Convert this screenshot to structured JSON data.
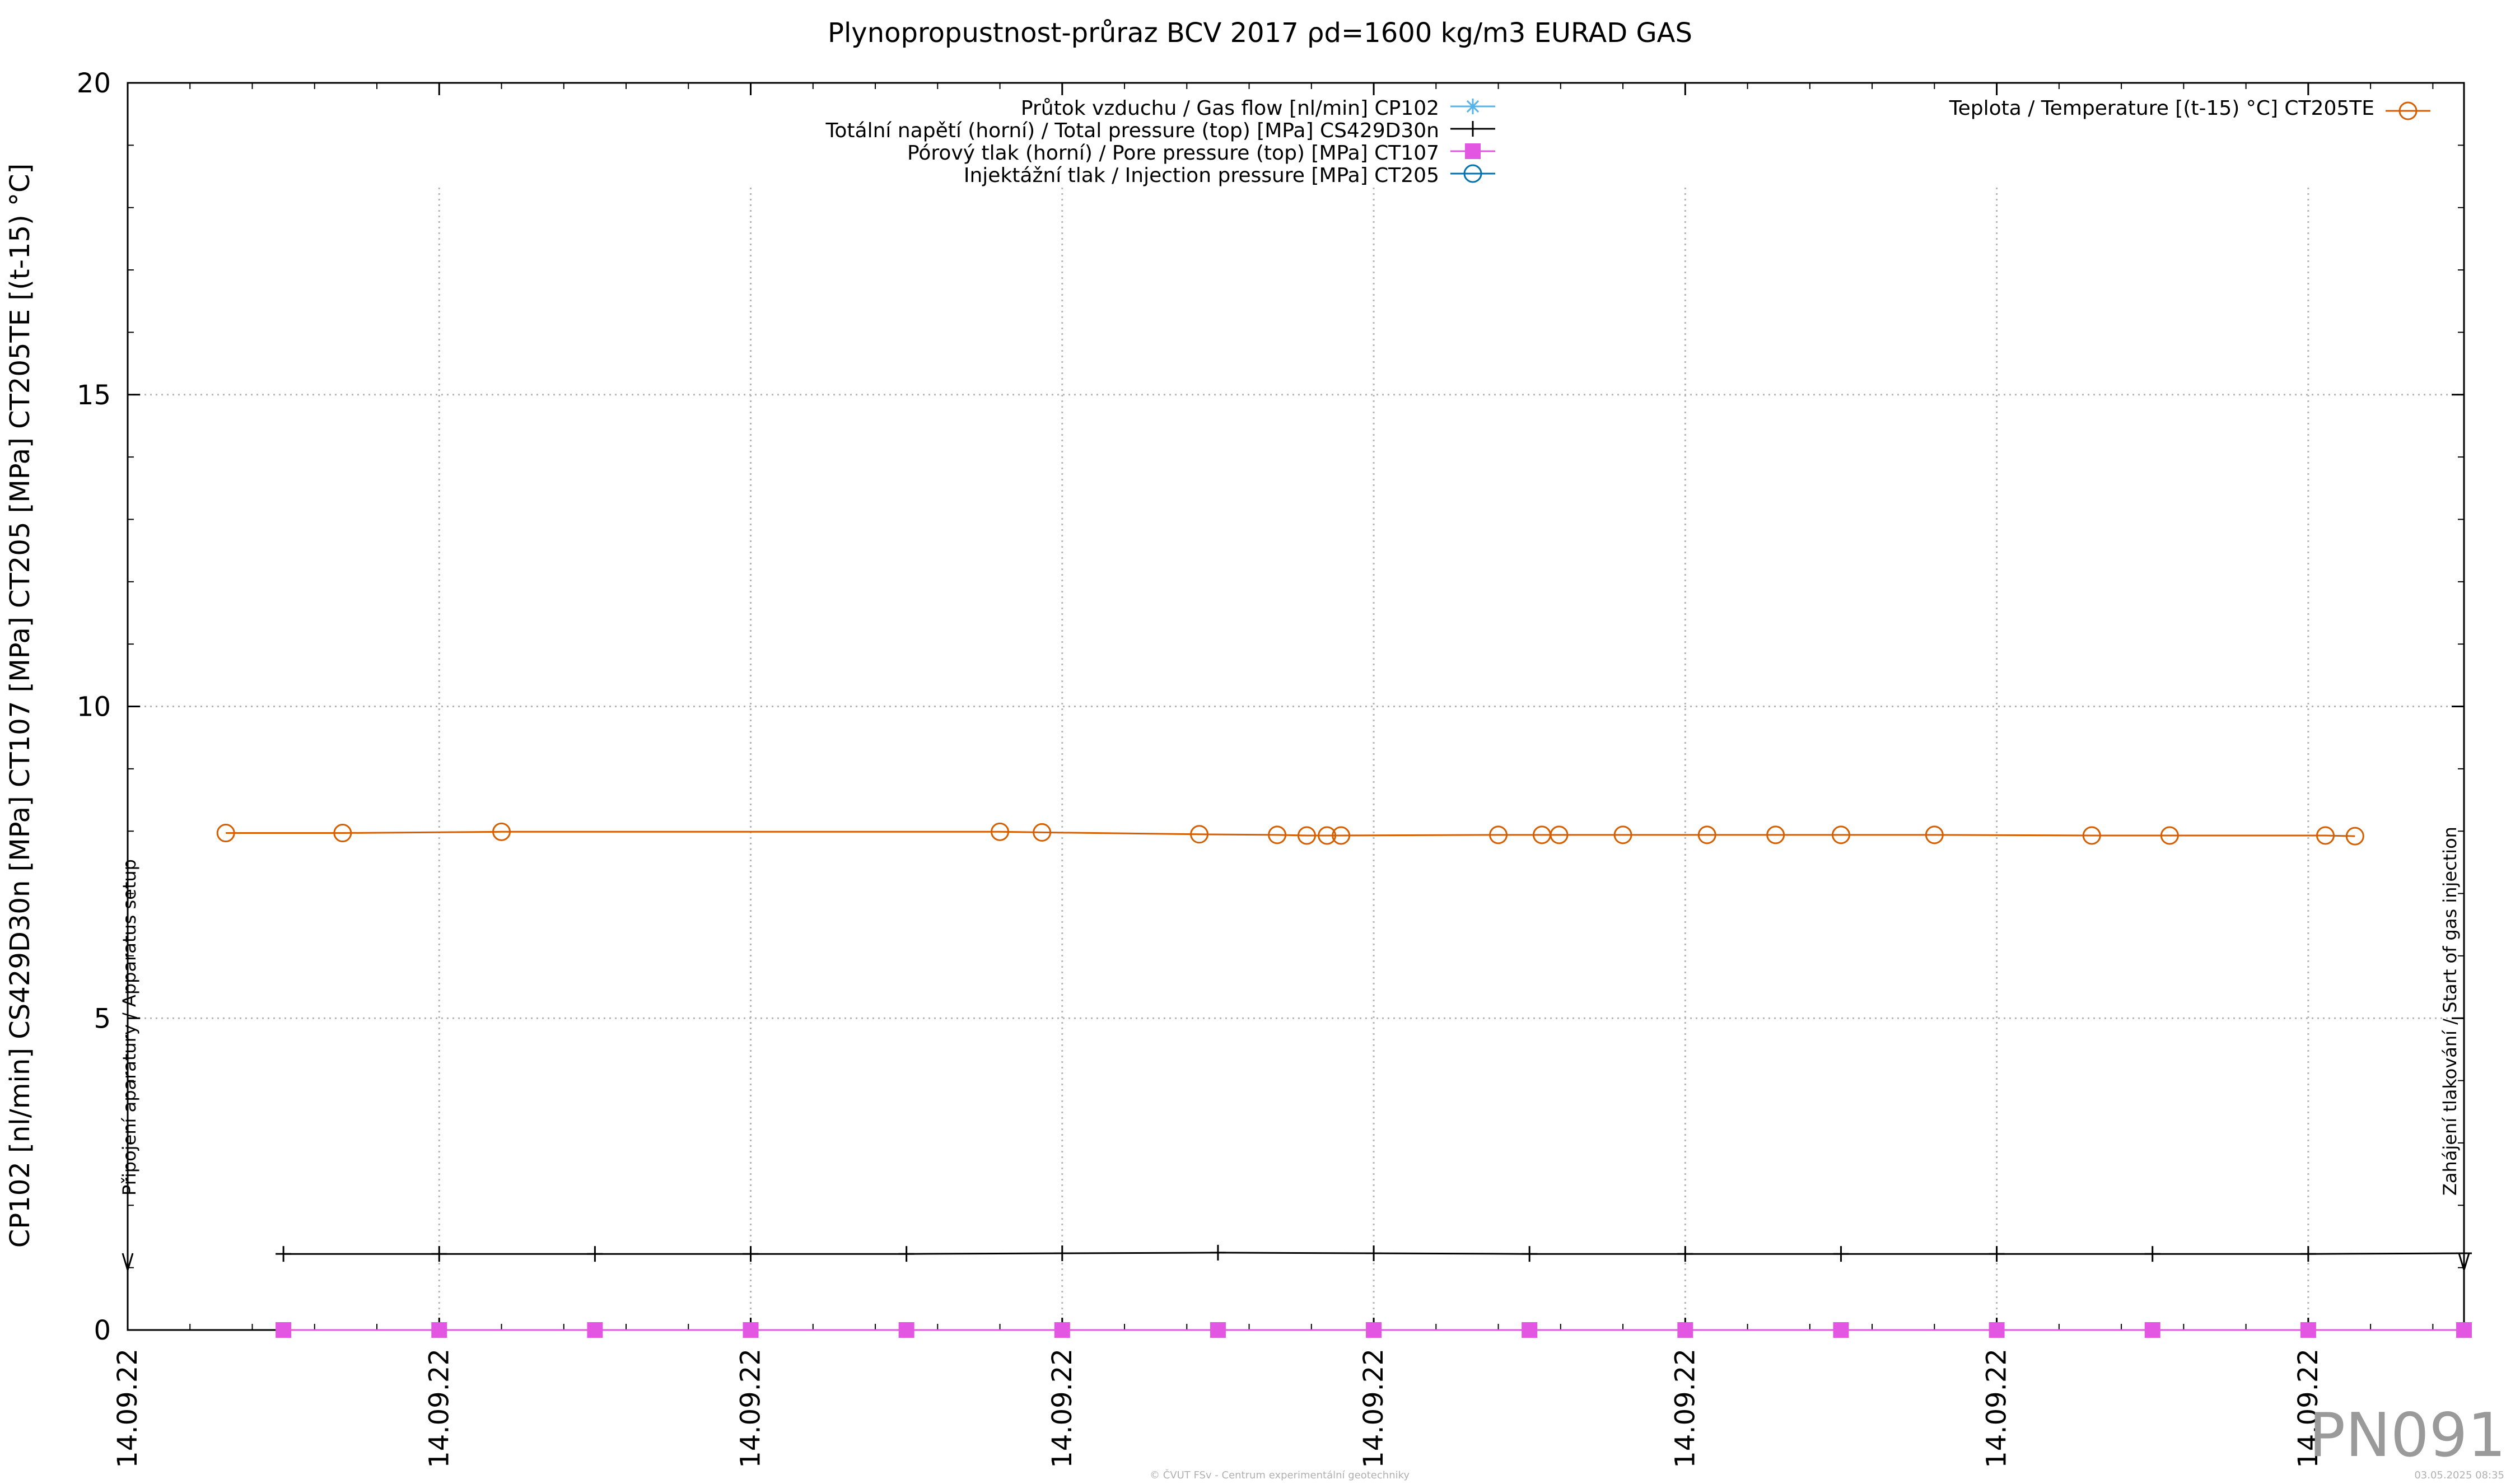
{
  "chart_data": {
    "type": "line",
    "title": "Plynopropustnost-průraz BCV 2017 ρd=1600 kg/m3 EURAD GAS",
    "ylabel": "CP102 [nl/min] CS429D30n [MPa] CT107 [MPa] CT205 [MPa] CT205TE [(t-15) °C]",
    "xlabel": "",
    "ylim": [
      0,
      20
    ],
    "xlim": [
      0,
      15
    ],
    "y_ticks": [
      {
        "value": 0,
        "label": "0"
      },
      {
        "value": 5,
        "label": "5"
      },
      {
        "value": 10,
        "label": "10"
      },
      {
        "value": 15,
        "label": "15"
      },
      {
        "value": 20,
        "label": "20"
      }
    ],
    "x_ticks": [
      {
        "value": 0,
        "label": "14.09.22"
      },
      {
        "value": 2,
        "label": "14.09.22"
      },
      {
        "value": 4,
        "label": "14.09.22"
      },
      {
        "value": 6,
        "label": "14.09.22"
      },
      {
        "value": 8,
        "label": "14.09.22"
      },
      {
        "value": 10,
        "label": "14.09.22"
      },
      {
        "value": 12,
        "label": "14.09.22"
      },
      {
        "value": 14,
        "label": "14.09.22"
      }
    ],
    "grid": true,
    "series": [
      {
        "name": "Průtok vzduchu / Gas flow [nl/min] CP102",
        "color": "#56b4e9",
        "marker": "asterisk",
        "axis": "left",
        "x": [
          6,
          7,
          8,
          9,
          10,
          11,
          12,
          13,
          14,
          15
        ],
        "y": [
          0,
          0,
          0,
          0,
          0,
          0,
          0,
          0,
          0,
          0
        ]
      },
      {
        "name": "Totální napětí (horní) / Total pressure (top) [MPa] CS429D30n",
        "color": "#000000",
        "marker": "plus",
        "axis": "left",
        "x": [
          1,
          2,
          3,
          4,
          5,
          6,
          7,
          8,
          9,
          10,
          11,
          12,
          13,
          14,
          15
        ],
        "y": [
          1.22,
          1.22,
          1.22,
          1.22,
          1.22,
          1.23,
          1.24,
          1.23,
          1.22,
          1.22,
          1.22,
          1.22,
          1.22,
          1.22,
          1.23
        ]
      },
      {
        "name": "Pórový tlak (horní) / Pore pressure (top) [MPa] CT107",
        "color": "#e256e2",
        "marker": "square",
        "axis": "left",
        "x": [
          1,
          2,
          3,
          4,
          5,
          6,
          7,
          8,
          9,
          10,
          11,
          12,
          13,
          14,
          15
        ],
        "y": [
          0,
          0,
          0,
          0,
          0,
          0,
          0,
          0,
          0,
          0,
          0,
          0,
          0,
          0,
          0
        ]
      },
      {
        "name": "Injektážní tlak / Injection pressure [MPa] CT205",
        "color": "#0072b2",
        "marker": "circle",
        "axis": "left",
        "x": [],
        "y": []
      },
      {
        "name": "Teplota / Temperature [(t-15) °C] CT205TE",
        "color": "#d55e00",
        "marker": "circle",
        "axis": "right",
        "x": [
          0.63,
          1.38,
          2.4,
          5.6,
          5.87,
          6.88,
          7.38,
          7.57,
          7.7,
          7.79,
          8.8,
          9.08,
          9.19,
          9.6,
          10.14,
          10.58,
          11.0,
          11.6,
          12.61,
          13.11,
          14.11,
          14.3
        ],
        "y": [
          7.97,
          7.97,
          7.99,
          7.99,
          7.98,
          7.95,
          7.94,
          7.93,
          7.93,
          7.93,
          7.94,
          7.94,
          7.94,
          7.94,
          7.94,
          7.94,
          7.94,
          7.94,
          7.93,
          7.93,
          7.93,
          7.92
        ]
      }
    ],
    "legend": {
      "placement": "top-center",
      "right_placement": "top-right"
    },
    "annotations": [
      {
        "text": "Připojení aparatury / Apparatus setup",
        "x": 0
      },
      {
        "text": "Zahájení tlakování / Start of gas injection",
        "x": 15
      }
    ],
    "watermark": "PN091",
    "footer_center": "© ČVUT FSv - Centrum experimentální geotechniky",
    "footer_right": "03.05.2025 08:35"
  }
}
